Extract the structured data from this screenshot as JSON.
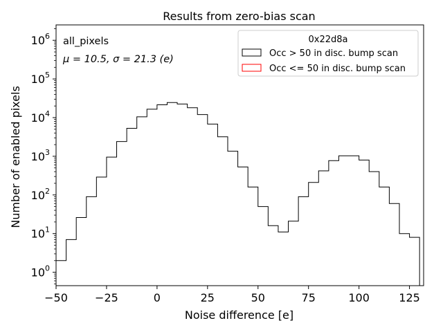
{
  "chart_data": {
    "type": "bar",
    "title": "Results from zero-bias scan",
    "xlabel": "Noise difference [e]",
    "ylabel": "Number of enabled pixels",
    "xlim": [
      -50,
      132
    ],
    "ylim": [
      0.45,
      2500000
    ],
    "yscale": "log",
    "grid": false,
    "legend_placement": "top-right",
    "x_ticks": [
      -50,
      -25,
      0,
      25,
      50,
      75,
      100,
      125
    ],
    "x_tick_labels": [
      "−50",
      "−25",
      "0",
      "25",
      "50",
      "75",
      "100",
      "125"
    ],
    "y_ticks": [
      1,
      10,
      100,
      1000,
      10000,
      100000,
      1000000
    ],
    "y_tick_labels": [
      {
        "base": "10",
        "exp": "0"
      },
      {
        "base": "10",
        "exp": "1"
      },
      {
        "base": "10",
        "exp": "2"
      },
      {
        "base": "10",
        "exp": "3"
      },
      {
        "base": "10",
        "exp": "4"
      },
      {
        "base": "10",
        "exp": "5"
      },
      {
        "base": "10",
        "exp": "6"
      }
    ],
    "annotation_name": "all_pixels",
    "annotation_stats": "μ = 10.5, σ = 21.3 (e)",
    "bin_edges": [
      -50,
      -45,
      -40,
      -35,
      -30,
      -25,
      -20,
      -15,
      -10,
      -5,
      0,
      5,
      10,
      15,
      20,
      25,
      30,
      35,
      40,
      45,
      50,
      55,
      60,
      65,
      70,
      75,
      80,
      85,
      90,
      95,
      100,
      105,
      110,
      115,
      120,
      125,
      130
    ],
    "series": [
      {
        "name": "Occ > 50 in disc. bump scan",
        "color": "#000000",
        "values": [
          2,
          7,
          26,
          90,
          290,
          950,
          2400,
          5300,
          10500,
          16500,
          21500,
          24500,
          22500,
          18000,
          12000,
          6800,
          3200,
          1350,
          530,
          160,
          50,
          16,
          11,
          21,
          90,
          210,
          420,
          770,
          1030,
          1030,
          800,
          400,
          160,
          60,
          10,
          8
        ]
      },
      {
        "name": "Occ <= 50 in disc. bump scan",
        "color": "#ff0000",
        "values": []
      }
    ],
    "legend": {
      "title": "0x22d8a",
      "entries": [
        "Occ > 50 in disc. bump scan",
        "Occ <= 50 in disc. bump scan"
      ]
    }
  }
}
